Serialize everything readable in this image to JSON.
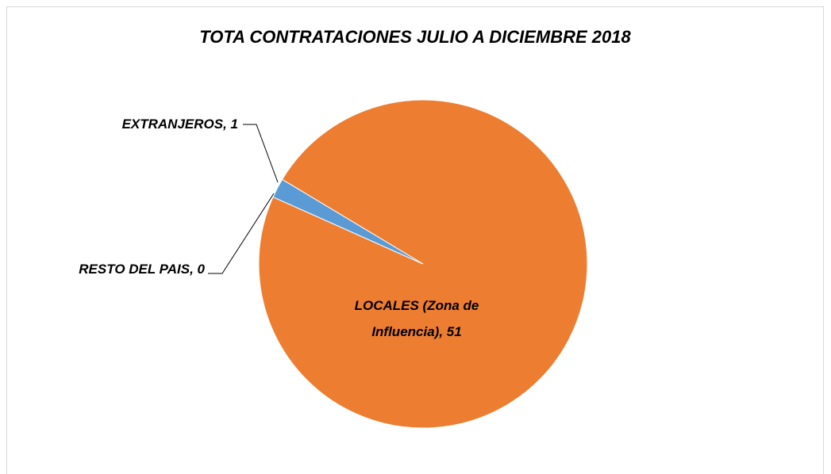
{
  "chart_data": {
    "type": "pie",
    "title": "TOTA CONTRATACIONES JULIO A DICIEMBRE 2018",
    "values": [
      51,
      1,
      0
    ],
    "value_labels": [
      "LOCALES (Zona de Influencia), 51",
      "EXTRANJEROS, 1",
      "RESTO DEL PAIS, 0"
    ],
    "colors": [
      "#ED7D31",
      "#5B9BD5",
      "#A5A5A5"
    ]
  }
}
